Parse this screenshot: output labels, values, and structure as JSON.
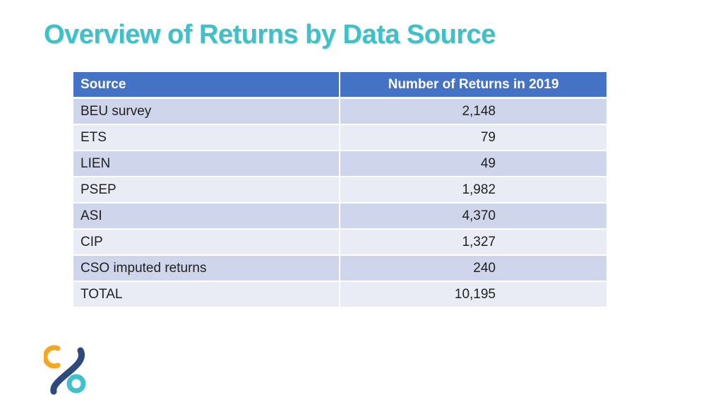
{
  "slide": {
    "title": "Overview of Returns by Data Source"
  },
  "table": {
    "headers": {
      "source": "Source",
      "returns": "Number of Returns in 2019"
    },
    "rows": [
      {
        "source": "BEU survey",
        "returns": "2,148"
      },
      {
        "source": "ETS",
        "returns": "79"
      },
      {
        "source": "LIEN",
        "returns": "49"
      },
      {
        "source": "PSEP",
        "returns": "1,982"
      },
      {
        "source": "ASI",
        "returns": "4,370"
      },
      {
        "source": "CIP",
        "returns": "1,327"
      },
      {
        "source": "CSO imputed returns",
        "returns": "240"
      },
      {
        "source": "TOTAL",
        "returns": "10,195"
      }
    ]
  },
  "logo": {
    "icon": "cso-logo-icon",
    "colors": {
      "orange": "#f5a623",
      "navy": "#2e4a7d",
      "teal": "#3fc1c9"
    }
  },
  "colors": {
    "title": "#3fc1c9",
    "header_bg": "#4472c4",
    "row_odd": "#cfd5ea",
    "row_even": "#e9ebf5"
  }
}
